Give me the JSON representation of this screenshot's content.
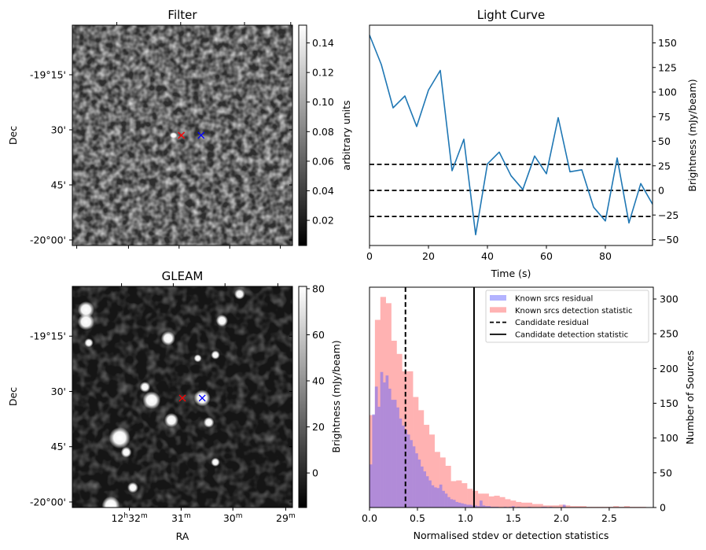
{
  "figure": {
    "panels": [
      "Filter",
      "Light Curve",
      "GLEAM",
      "Histogram"
    ]
  },
  "chart_data": [
    {
      "id": "filter",
      "type": "heatmap",
      "title": "Filter",
      "xlabel": "",
      "ylabel": "Dec",
      "ytick_labels": [
        "-19°15'",
        "30'",
        "45'",
        "-20°00'"
      ],
      "colorbar": {
        "label": "arbitrary units",
        "range": [
          0.003,
          0.152
        ],
        "ticks": [
          0.02,
          0.04,
          0.06,
          0.08,
          0.1,
          0.12,
          0.14
        ],
        "tick_labels": [
          "0.02",
          "0.04",
          "0.06",
          "0.08",
          "0.10",
          "0.12",
          "0.14"
        ],
        "cmap": "gray"
      },
      "markers": [
        {
          "name": "candidate",
          "symbol": "x",
          "color": "#ff0000",
          "fx": 0.495,
          "fy": 0.5
        },
        {
          "name": "known-source",
          "symbol": "x",
          "color": "#0000ff",
          "fx": 0.585,
          "fy": 0.5
        }
      ],
      "bright_spots": [
        {
          "fx": 0.46,
          "fy": 0.5,
          "level": 0.13
        }
      ],
      "texture": "noise"
    },
    {
      "id": "light-curve",
      "type": "line",
      "title": "Light Curve",
      "xlabel": "Time (s)",
      "ylabel": "Brightness (mJy/beam)",
      "xlim": [
        0,
        96
      ],
      "ylim": [
        -56,
        168
      ],
      "xticks": [
        0,
        20,
        40,
        60,
        80
      ],
      "xtick_labels": [
        "0",
        "20",
        "40",
        "60",
        "80"
      ],
      "yticks": [
        -50,
        -25,
        0,
        25,
        50,
        75,
        100,
        125,
        150
      ],
      "ytick_labels": [
        "−50",
        "−25",
        "0",
        "25",
        "50",
        "75",
        "100",
        "125",
        "150"
      ],
      "series": [
        {
          "name": "light curve",
          "color": "#1f77b4",
          "x": [
            0,
            4,
            8,
            12,
            16,
            20,
            24,
            28,
            32,
            36,
            40,
            44,
            48,
            52,
            56,
            60,
            64,
            68,
            72,
            76,
            80,
            84,
            88,
            92,
            96
          ],
          "y": [
            158,
            128,
            84,
            96,
            65,
            102,
            122,
            20,
            52,
            -45,
            27,
            39,
            15,
            1,
            35,
            17,
            74,
            19,
            21,
            -17,
            -31,
            33,
            -33,
            7,
            -14
          ]
        }
      ],
      "hlines": [
        {
          "y": 26.5,
          "style": "dashed",
          "color": "#000000"
        },
        {
          "y": 0,
          "style": "dashed",
          "color": "#000000"
        },
        {
          "y": -26.5,
          "style": "dashed",
          "color": "#000000"
        }
      ],
      "yaxis_side": "right"
    },
    {
      "id": "gleam",
      "type": "heatmap",
      "title": "GLEAM",
      "xlabel": "RA",
      "ylabel": "Dec",
      "xtick_labels": [
        {
          "main": "12",
          "sup1": "h",
          "main2": "32",
          "sup2": "m"
        },
        {
          "main": "31",
          "sup1": "m",
          "main2": "",
          "sup2": ""
        },
        {
          "main": "30",
          "sup1": "m",
          "main2": "",
          "sup2": ""
        },
        {
          "main": "29",
          "sup1": "m",
          "main2": "",
          "sup2": ""
        }
      ],
      "ytick_labels": [
        "-19°15'",
        "30'",
        "45'",
        "-20°00'"
      ],
      "colorbar": {
        "label": "Brightness (mJy/beam)",
        "range": [
          -15,
          81
        ],
        "ticks": [
          0,
          20,
          40,
          60,
          80
        ],
        "tick_labels": [
          "0",
          "20",
          "40",
          "60",
          "80"
        ],
        "cmap": "gray"
      },
      "markers": [
        {
          "name": "candidate",
          "symbol": "x",
          "color": "#ff0000",
          "fx": 0.5,
          "fy": 0.505
        },
        {
          "name": "known-source",
          "symbol": "x",
          "color": "#0000ff",
          "fx": 0.59,
          "fy": 0.505
        }
      ],
      "bright_spots": [
        {
          "fx": 0.062,
          "fy": 0.105,
          "r": 0.028
        },
        {
          "fx": 0.062,
          "fy": 0.16,
          "r": 0.028
        },
        {
          "fx": 0.435,
          "fy": 0.235,
          "r": 0.024
        },
        {
          "fx": 0.36,
          "fy": 0.515,
          "r": 0.03
        },
        {
          "fx": 0.59,
          "fy": 0.505,
          "r": 0.028
        },
        {
          "fx": 0.45,
          "fy": 0.605,
          "r": 0.024
        },
        {
          "fx": 0.215,
          "fy": 0.685,
          "r": 0.036
        },
        {
          "fx": 0.245,
          "fy": 0.75,
          "r": 0.018
        },
        {
          "fx": 0.275,
          "fy": 0.91,
          "r": 0.018
        },
        {
          "fx": 0.175,
          "fy": 0.99,
          "r": 0.03
        },
        {
          "fx": 0.33,
          "fy": 0.455,
          "r": 0.018
        },
        {
          "fx": 0.62,
          "fy": 0.615,
          "r": 0.018
        },
        {
          "fx": 0.68,
          "fy": 0.155,
          "r": 0.02
        },
        {
          "fx": 0.76,
          "fy": 0.035,
          "r": 0.018
        },
        {
          "fx": 0.65,
          "fy": 0.31,
          "r": 0.015
        },
        {
          "fx": 0.57,
          "fy": 0.325,
          "r": 0.013
        },
        {
          "fx": 0.075,
          "fy": 0.255,
          "r": 0.015
        },
        {
          "fx": 0.65,
          "fy": 0.795,
          "r": 0.015
        }
      ],
      "texture": "noise"
    },
    {
      "id": "histogram",
      "type": "bar",
      "title": "",
      "xlabel": "Normalised stdev or detection statistics",
      "ylabel": "Number of Sources",
      "xlim": [
        0,
        2.96
      ],
      "ylim": [
        0,
        317
      ],
      "xticks": [
        0,
        0.5,
        1.0,
        1.5,
        2.0,
        2.5
      ],
      "xtick_labels": [
        "0.0",
        "0.5",
        "1.0",
        "1.5",
        "2.0",
        "2.5"
      ],
      "yticks": [
        0,
        50,
        100,
        150,
        200,
        250,
        300
      ],
      "ytick_labels": [
        "0",
        "50",
        "100",
        "150",
        "200",
        "250",
        "300"
      ],
      "yaxis_side": "right",
      "bin_width": 0.0565,
      "series": [
        {
          "name": "Known srcs detection statistic",
          "color": "#ff7f7f",
          "opacity": 0.6,
          "bin_start": 0.0,
          "values": [
            133,
            270,
            303,
            294,
            240,
            221,
            196,
            196,
            159,
            140,
            119,
            105,
            80,
            72,
            60,
            38,
            39,
            35,
            27,
            24,
            20,
            20,
            16,
            17,
            15,
            12,
            10,
            8,
            7,
            7,
            5,
            5,
            3,
            3,
            3,
            4,
            3,
            2,
            2,
            2,
            1,
            1,
            1,
            1,
            1,
            2,
            1,
            2,
            1,
            1,
            1,
            0,
            0,
            0,
            0,
            1,
            0,
            0,
            0,
            0,
            0,
            0,
            0,
            0,
            0,
            0,
            0,
            3,
            0
          ]
        },
        {
          "name": "Known srcs residual",
          "color": "#6666ff",
          "opacity": 0.5,
          "bin_start": 0.0,
          "bin_width": 0.028,
          "values": [
            62,
            134,
            174,
            145,
            195,
            180,
            190,
            171,
            155,
            155,
            144,
            128,
            118,
            112,
            105,
            97,
            88,
            78,
            69,
            59,
            52,
            45,
            39,
            32,
            29,
            28,
            33,
            24,
            20,
            15,
            12,
            11,
            8,
            7,
            6,
            5,
            4,
            4,
            3,
            3,
            2,
            10,
            3,
            2,
            2,
            1,
            1,
            1,
            0,
            0,
            1,
            0,
            1,
            2,
            0,
            1,
            0,
            0,
            0,
            1,
            0,
            0,
            0,
            0,
            1,
            1,
            0,
            1,
            0,
            0,
            0,
            0,
            4,
            0,
            0
          ]
        }
      ],
      "vlines": [
        {
          "name": "Candidate residual",
          "x": 0.375,
          "style": "dashed",
          "color": "#000000"
        },
        {
          "name": "Candidate detection statistic",
          "x": 1.09,
          "style": "solid",
          "color": "#000000"
        }
      ],
      "legend": {
        "position": "top-right",
        "entries": [
          {
            "label": "Known srcs residual",
            "kind": "patch",
            "color": "#b3b3ff"
          },
          {
            "label": "Known srcs detection statistic",
            "kind": "patch",
            "color": "#ffb3b3"
          },
          {
            "label": "Candidate residual",
            "kind": "dashed",
            "color": "#000000"
          },
          {
            "label": "Candidate detection statistic",
            "kind": "solid",
            "color": "#000000"
          }
        ]
      }
    }
  ]
}
